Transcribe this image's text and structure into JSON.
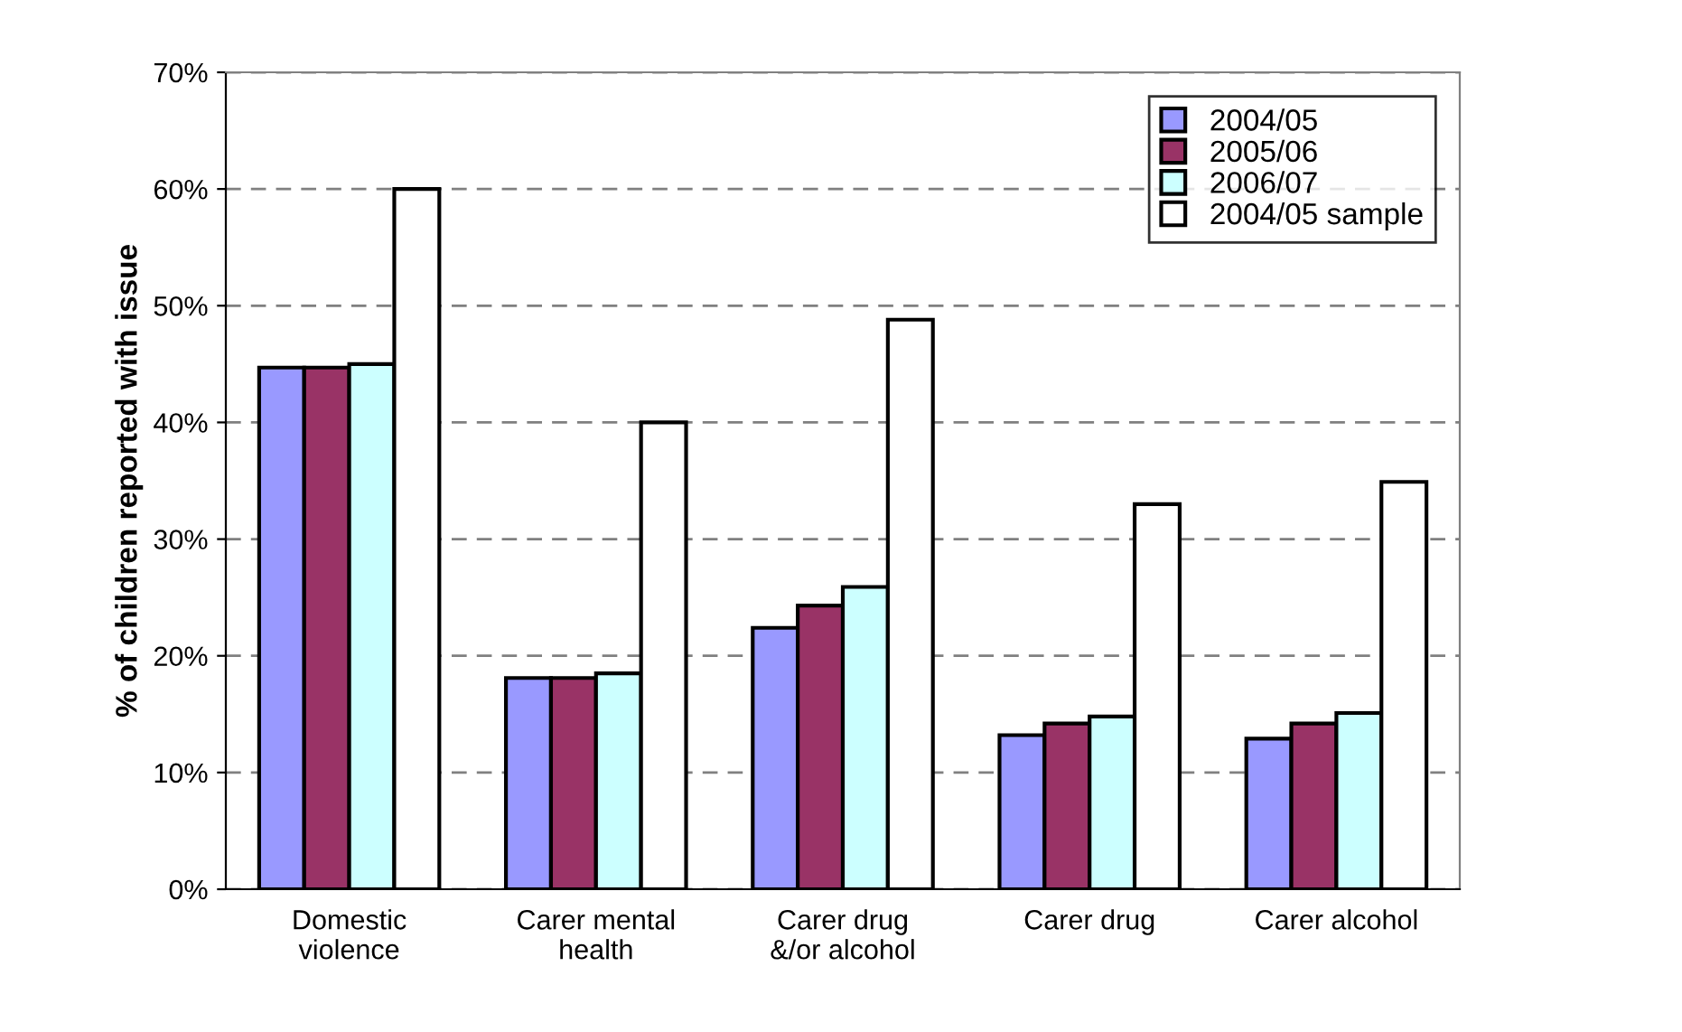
{
  "chart_data": {
    "type": "bar",
    "ylabel": "% of children reported with issue",
    "categories": [
      "Domestic\nviolence",
      "Carer mental\nhealth",
      "Carer drug\n&/or alcohol",
      "Carer drug",
      "Carer alcohol"
    ],
    "series": [
      {
        "name": "2004/05",
        "color": "#9999ff",
        "values": [
          44.7,
          18.1,
          22.4,
          13.2,
          12.9
        ]
      },
      {
        "name": "2005/06",
        "color": "#993366",
        "values": [
          44.7,
          18.1,
          24.3,
          14.2,
          14.2
        ]
      },
      {
        "name": "2006/07",
        "color": "#ccffff",
        "values": [
          45.0,
          18.5,
          25.9,
          14.8,
          15.1
        ]
      },
      {
        "name": "2004/05 sample",
        "color": "#ffffff",
        "values": [
          60,
          40,
          48.8,
          33.0,
          34.9
        ]
      }
    ],
    "ylim": [
      0,
      70
    ],
    "yticks": [
      {
        "value": 0,
        "label": "0%"
      },
      {
        "value": 10,
        "label": "10%"
      },
      {
        "value": 20,
        "label": "20%"
      },
      {
        "value": 30,
        "label": "30%"
      },
      {
        "value": 40,
        "label": "40%"
      },
      {
        "value": 50,
        "label": "50%"
      },
      {
        "value": 60,
        "label": "60%"
      },
      {
        "value": 70,
        "label": "70%"
      }
    ],
    "grid": "y",
    "legend": "top right"
  }
}
